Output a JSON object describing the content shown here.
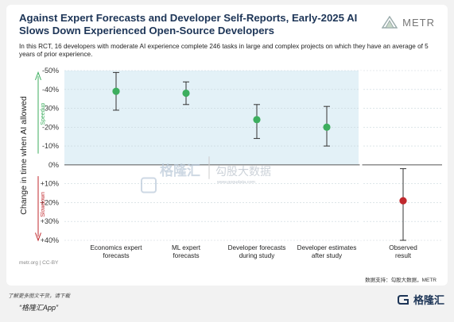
{
  "header": {
    "title": "Against Expert Forecasts and Developer Self-Reports, Early-2025 AI Slows Down Experienced Open-Source Developers",
    "subtitle": "In this RCT, 16 developers with moderate AI experience complete 246 tasks in large and complex projects on which they have an average of 5 years of prior experience.",
    "brand": "METR"
  },
  "footer": {
    "left": "metr.org | CC-BY",
    "right": "数据支持：勾股大数据，METR"
  },
  "watermark": {
    "left_text": "格隆汇",
    "right_text": "勾股大数据",
    "url": "www.gogudata.com"
  },
  "page_notes": {
    "line1": "了解更多图文干货，请下载",
    "line2": "“格隆汇App”",
    "bottom_logo": "格隆汇"
  },
  "colors": {
    "title": "#1d3557",
    "forecast_fill": "#e3f1f7",
    "forecast_point": "#3cae5e",
    "observed_point": "#c0282d",
    "speedup_arrow": "#3cae5e",
    "slowdown_arrow": "#c0282d"
  },
  "chart_data": {
    "type": "scatter",
    "ylabel": "Change in time when AI allowed",
    "ylim": [
      -50,
      40
    ],
    "y_reversed": true,
    "yticks": [
      -50,
      -40,
      -30,
      -20,
      -10,
      0,
      10,
      20,
      30,
      40
    ],
    "ytick_labels": [
      "-50%",
      "-40%",
      "-30%",
      "-20%",
      "-10%",
      "0%",
      "+10%",
      "+20%",
      "+30%",
      "+40%"
    ],
    "speedup_label": "Speedup",
    "slowdown_label": "Slowdown",
    "grid": true,
    "points": [
      {
        "label": [
          "Economics expert",
          "forecasts"
        ],
        "value": -39,
        "ci": [
          -49,
          -29
        ],
        "group": "forecast"
      },
      {
        "label": [
          "ML expert",
          "forecasts"
        ],
        "value": -38,
        "ci": [
          -44,
          -32
        ],
        "group": "forecast"
      },
      {
        "label": [
          "Developer forecasts",
          "during study"
        ],
        "value": -24,
        "ci": [
          -32,
          -14
        ],
        "group": "forecast"
      },
      {
        "label": [
          "Developer estimates",
          "after study"
        ],
        "value": -20,
        "ci": [
          -31,
          -10
        ],
        "group": "forecast"
      },
      {
        "label": [
          "Observed",
          "result"
        ],
        "value": 19,
        "ci": [
          2,
          40
        ],
        "group": "observed"
      }
    ]
  }
}
